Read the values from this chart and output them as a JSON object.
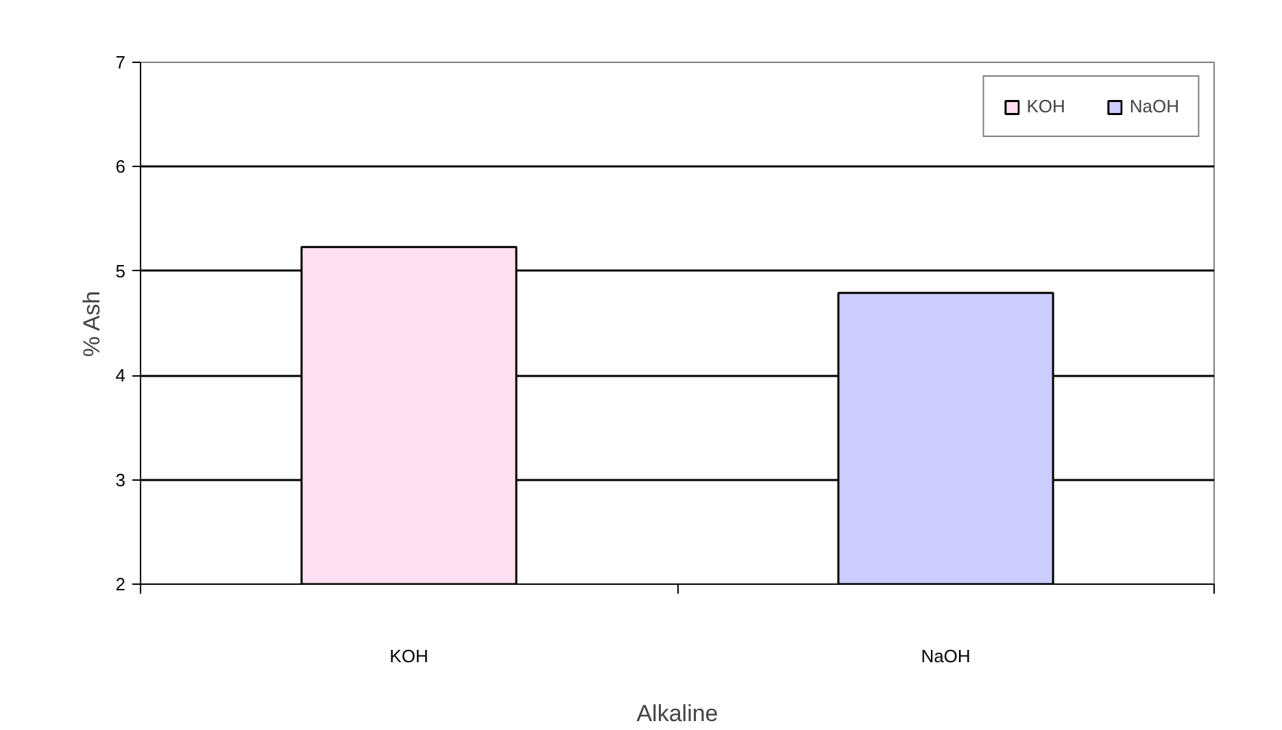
{
  "chart_data": {
    "type": "bar",
    "xlabel": "Alkaline",
    "ylabel": "% Ash",
    "categories": [
      "KOH",
      "NaOH"
    ],
    "series": [
      {
        "name": "KOH",
        "color": "#ffe0f0",
        "values": [
          5.23,
          null
        ]
      },
      {
        "name": "NaOH",
        "color": "#ccccff",
        "values": [
          null,
          4.79
        ]
      }
    ],
    "ylim": [
      2,
      7
    ],
    "yticks": [
      2,
      3,
      4,
      5,
      6,
      7
    ],
    "grid": "y",
    "legend": "top right"
  }
}
